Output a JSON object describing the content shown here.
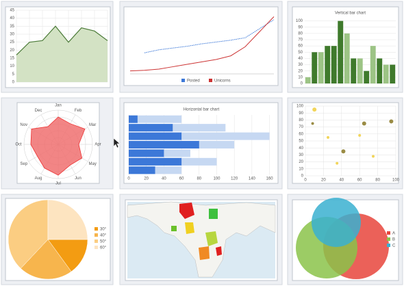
{
  "chart_data": [
    {
      "type": "area",
      "values": [
        17,
        25,
        26,
        35,
        25,
        34,
        32,
        26
      ],
      "color": "#4d7c3a",
      "fill": "#d3e2c4",
      "ylim": [
        0,
        45
      ],
      "yticks": [
        0,
        5,
        10,
        15,
        20,
        25,
        30,
        35,
        40,
        45
      ],
      "grid": true
    },
    {
      "type": "line",
      "ylim": [
        0,
        100
      ],
      "series": [
        {
          "name": "Posted",
          "color": "#3c78d8",
          "style": "dotted",
          "values": [
            null,
            35,
            40,
            43,
            46,
            50,
            53,
            56,
            60,
            75,
            90
          ]
        },
        {
          "name": "Unicorns",
          "color": "#cc3333",
          "style": "solid",
          "values": [
            5,
            6,
            8,
            12,
            16,
            20,
            24,
            30,
            45,
            70,
            95
          ]
        }
      ]
    },
    {
      "type": "bar",
      "title": "Vertical bar chart",
      "values": [
        10,
        50,
        50,
        60,
        60,
        100,
        80,
        40,
        40,
        20,
        60,
        40,
        30,
        30
      ],
      "colors": [
        "#9cc485",
        "#3f7a2c",
        "#9cc485",
        "#3f7a2c",
        "#3f7a2c",
        "#3f7a2c",
        "#9cc485",
        "#3f7a2c",
        "#9cc485",
        "#3f7a2c",
        "#9cc485",
        "#3f7a2c",
        "#9cc485",
        "#3f7a2c"
      ],
      "ylim": [
        0,
        105
      ],
      "yticks": [
        0,
        10,
        20,
        30,
        40,
        50,
        60,
        70,
        80,
        90,
        100
      ],
      "grid": true
    },
    {
      "type": "radar",
      "categories": [
        "Jan",
        "Feb",
        "Mar",
        "Apr",
        "May",
        "Jun",
        "Jul",
        "Aug",
        "Sep",
        "Oct",
        "Nov",
        "Dec"
      ],
      "values": [
        8,
        7,
        9,
        6,
        8,
        7,
        9,
        8,
        7,
        8,
        9,
        6
      ],
      "rlim": [
        0,
        10
      ],
      "color": "#e33",
      "fill": "#f07070"
    },
    {
      "type": "hbar",
      "title": "Horizontal bar chart",
      "series": [
        {
          "color": "#c6d8f2",
          "values": [
            60,
            110,
            160,
            120,
            70,
            100,
            60
          ]
        },
        {
          "color": "#3c78d8",
          "values": [
            10,
            50,
            60,
            80,
            40,
            60,
            30
          ]
        }
      ],
      "xlim": [
        0,
        165
      ],
      "xticks": [
        0,
        20,
        40,
        60,
        80,
        100,
        120,
        140,
        160
      ],
      "grid": true
    },
    {
      "type": "scatter",
      "x": [
        10,
        8,
        25,
        42,
        35,
        60,
        65,
        75,
        95
      ],
      "values": [
        95,
        75,
        55,
        35,
        18,
        58,
        75,
        28,
        78
      ],
      "sizes": [
        3,
        2,
        2,
        3,
        2,
        2,
        3,
        2,
        3
      ],
      "colors": [
        "#f2d55a",
        "#9a8c45",
        "#f2d55a",
        "#9a8c45",
        "#f2d55a",
        "#f2d55a",
        "#9a8c45",
        "#f2d55a",
        "#9a8c45"
      ],
      "xlim": [
        0,
        100
      ],
      "xticks": [
        0,
        20,
        40,
        60,
        80,
        100
      ],
      "ylim": [
        0,
        100
      ],
      "yticks": [
        0,
        10,
        20,
        30,
        40,
        50,
        60,
        70,
        80,
        90,
        100
      ],
      "grid": true
    },
    {
      "type": "pie",
      "categories": [
        "30°",
        "40°",
        "50°",
        "60°"
      ],
      "values": [
        15,
        22,
        38,
        25
      ],
      "colors": [
        "#f39c12",
        "#f7b54d",
        "#fbcd82",
        "#fde4c0"
      ]
    },
    {
      "type": "venn",
      "categories": [
        "A",
        "B",
        "C"
      ],
      "values": [
        48,
        45,
        36
      ],
      "colors": [
        "#e8453c",
        "#8bc34a",
        "#3ab0d0"
      ]
    }
  ]
}
